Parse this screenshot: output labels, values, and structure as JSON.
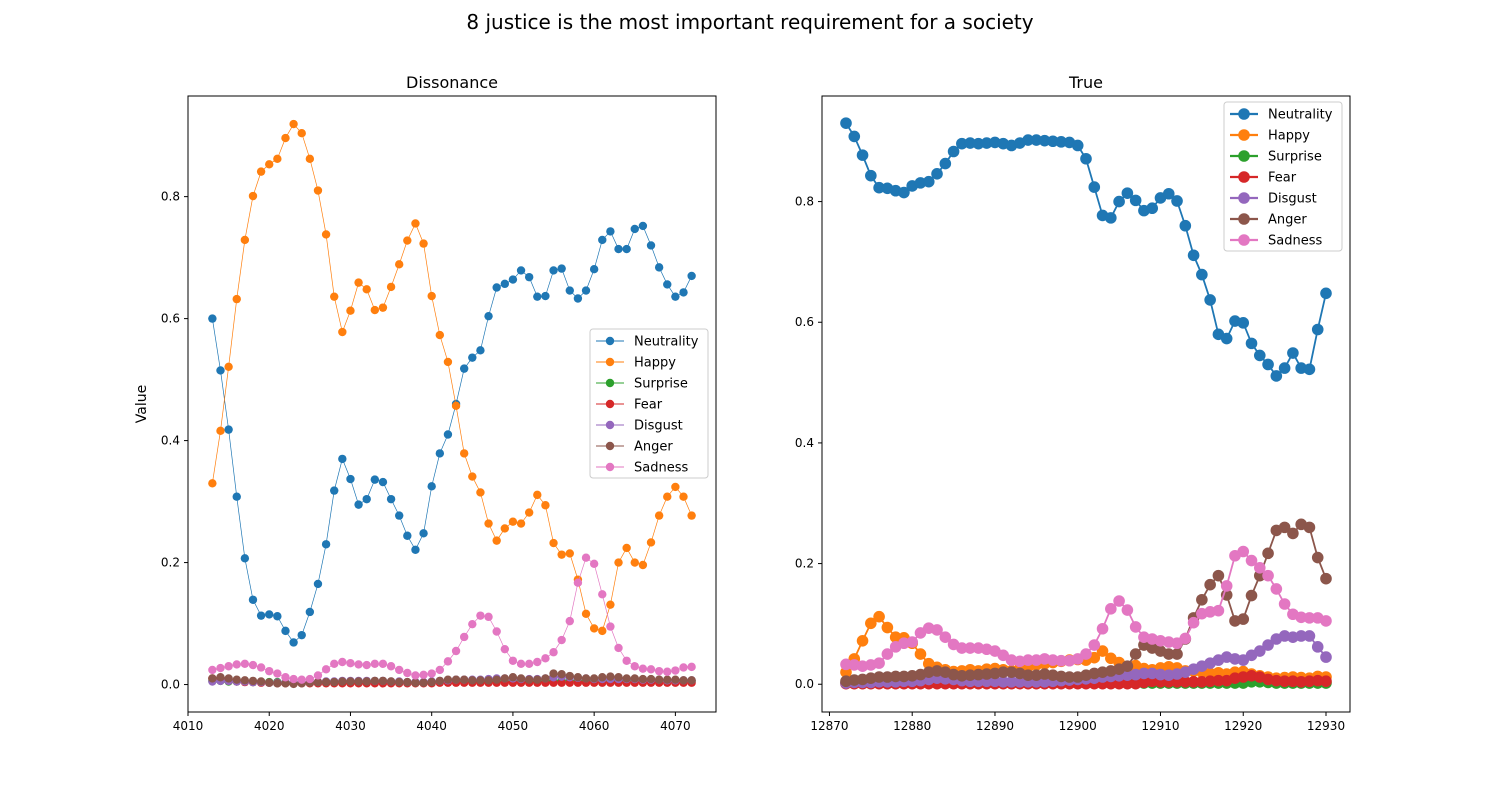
{
  "figure": {
    "suptitle": "8 justice is the most important requirement for a society"
  },
  "colors": {
    "Neutrality": "#1f77b4",
    "Happy": "#ff7f0e",
    "Surprise": "#2ca02c",
    "Fear": "#d62728",
    "Disgust": "#9467bd",
    "Anger": "#8c564b",
    "Sadness": "#e377c2"
  },
  "chart_data": [
    {
      "type": "line",
      "title": "Dissonance",
      "xlabel": "",
      "ylabel": "Value",
      "xlim": [
        4010,
        4075
      ],
      "ylim": [
        -0.045,
        0.965
      ],
      "xticks": [
        4010,
        4020,
        4030,
        4040,
        4050,
        4060,
        4070
      ],
      "yticks": [
        0.0,
        0.2,
        0.4,
        0.6,
        0.8
      ],
      "legend": "center-right",
      "x_start": 4013,
      "x_end": 4072,
      "series": [
        {
          "name": "Neutrality",
          "values": [
            0.6,
            0.515,
            0.418,
            0.308,
            0.207,
            0.139,
            0.113,
            0.115,
            0.112,
            0.088,
            0.069,
            0.081,
            0.119,
            0.165,
            0.23,
            0.318,
            0.37,
            0.337,
            0.295,
            0.304,
            0.336,
            0.332,
            0.304,
            0.277,
            0.244,
            0.221,
            0.248,
            0.325,
            0.379,
            0.41,
            0.46,
            0.518,
            0.536,
            0.548,
            0.604,
            0.651,
            0.657,
            0.664,
            0.679,
            0.668,
            0.636,
            0.637,
            0.679,
            0.682,
            0.646,
            0.633,
            0.646,
            0.681,
            0.729,
            0.743,
            0.714,
            0.714,
            0.747,
            0.752,
            0.72,
            0.684,
            0.656,
            0.636,
            0.643,
            0.67
          ]
        },
        {
          "name": "Happy",
          "values": [
            0.33,
            0.416,
            0.521,
            0.632,
            0.729,
            0.801,
            0.841,
            0.853,
            0.862,
            0.896,
            0.919,
            0.904,
            0.862,
            0.81,
            0.738,
            0.636,
            0.578,
            0.613,
            0.659,
            0.648,
            0.614,
            0.618,
            0.652,
            0.689,
            0.728,
            0.756,
            0.723,
            0.637,
            0.573,
            0.529,
            0.457,
            0.379,
            0.341,
            0.315,
            0.264,
            0.236,
            0.256,
            0.267,
            0.264,
            0.282,
            0.311,
            0.294,
            0.232,
            0.213,
            0.215,
            0.172,
            0.116,
            0.092,
            0.088,
            0.131,
            0.2,
            0.224,
            0.2,
            0.196,
            0.233,
            0.277,
            0.308,
            0.324,
            0.308,
            0.277
          ]
        },
        {
          "name": "Surprise",
          "values": [
            0.006,
            0.006,
            0.005,
            0.005,
            0.005,
            0.004,
            0.004,
            0.004,
            0.004,
            0.003,
            0.003,
            0.003,
            0.003,
            0.003,
            0.004,
            0.004,
            0.004,
            0.004,
            0.004,
            0.004,
            0.004,
            0.004,
            0.004,
            0.004,
            0.003,
            0.003,
            0.003,
            0.004,
            0.004,
            0.004,
            0.005,
            0.005,
            0.005,
            0.005,
            0.005,
            0.005,
            0.005,
            0.005,
            0.005,
            0.005,
            0.005,
            0.005,
            0.006,
            0.006,
            0.006,
            0.006,
            0.006,
            0.006,
            0.006,
            0.006,
            0.006,
            0.006,
            0.006,
            0.006,
            0.006,
            0.006,
            0.006,
            0.006,
            0.006,
            0.006
          ]
        },
        {
          "name": "Fear",
          "values": [
            0.01,
            0.008,
            0.006,
            0.005,
            0.004,
            0.004,
            0.003,
            0.003,
            0.002,
            0.002,
            0.002,
            0.002,
            0.002,
            0.002,
            0.002,
            0.002,
            0.002,
            0.002,
            0.002,
            0.002,
            0.002,
            0.002,
            0.002,
            0.002,
            0.002,
            0.002,
            0.002,
            0.002,
            0.003,
            0.003,
            0.003,
            0.003,
            0.003,
            0.003,
            0.003,
            0.003,
            0.003,
            0.003,
            0.003,
            0.003,
            0.003,
            0.003,
            0.003,
            0.003,
            0.003,
            0.003,
            0.003,
            0.003,
            0.003,
            0.003,
            0.003,
            0.003,
            0.003,
            0.003,
            0.003,
            0.003,
            0.003,
            0.003,
            0.003,
            0.003
          ]
        },
        {
          "name": "Disgust",
          "values": [
            0.005,
            0.006,
            0.006,
            0.005,
            0.005,
            0.004,
            0.004,
            0.003,
            0.003,
            0.003,
            0.003,
            0.003,
            0.004,
            0.004,
            0.005,
            0.005,
            0.006,
            0.006,
            0.006,
            0.006,
            0.006,
            0.006,
            0.005,
            0.005,
            0.004,
            0.004,
            0.004,
            0.005,
            0.006,
            0.007,
            0.008,
            0.008,
            0.008,
            0.008,
            0.009,
            0.01,
            0.01,
            0.01,
            0.009,
            0.009,
            0.009,
            0.01,
            0.012,
            0.013,
            0.012,
            0.011,
            0.01,
            0.009,
            0.009,
            0.009,
            0.009,
            0.009,
            0.009,
            0.008,
            0.008,
            0.008,
            0.007,
            0.007,
            0.007,
            0.007
          ]
        },
        {
          "name": "Anger",
          "values": [
            0.01,
            0.012,
            0.01,
            0.008,
            0.007,
            0.006,
            0.005,
            0.003,
            0.002,
            0.002,
            0.001,
            0.002,
            0.003,
            0.004,
            0.004,
            0.004,
            0.005,
            0.005,
            0.005,
            0.005,
            0.006,
            0.006,
            0.005,
            0.004,
            0.004,
            0.003,
            0.003,
            0.004,
            0.006,
            0.008,
            0.008,
            0.008,
            0.007,
            0.007,
            0.007,
            0.008,
            0.01,
            0.012,
            0.01,
            0.008,
            0.008,
            0.01,
            0.018,
            0.017,
            0.014,
            0.012,
            0.01,
            0.01,
            0.012,
            0.013,
            0.012,
            0.01,
            0.01,
            0.009,
            0.009,
            0.008,
            0.008,
            0.008,
            0.007,
            0.007
          ]
        },
        {
          "name": "Sadness",
          "values": [
            0.024,
            0.027,
            0.03,
            0.033,
            0.034,
            0.032,
            0.028,
            0.022,
            0.018,
            0.012,
            0.009,
            0.008,
            0.009,
            0.015,
            0.025,
            0.034,
            0.037,
            0.035,
            0.033,
            0.032,
            0.034,
            0.034,
            0.03,
            0.024,
            0.019,
            0.015,
            0.016,
            0.018,
            0.024,
            0.038,
            0.055,
            0.078,
            0.099,
            0.113,
            0.111,
            0.087,
            0.058,
            0.039,
            0.034,
            0.034,
            0.037,
            0.043,
            0.053,
            0.073,
            0.104,
            0.167,
            0.208,
            0.198,
            0.148,
            0.095,
            0.06,
            0.039,
            0.03,
            0.026,
            0.025,
            0.022,
            0.021,
            0.023,
            0.028,
            0.029
          ]
        }
      ]
    },
    {
      "type": "line",
      "title": "True",
      "xlabel": "",
      "ylabel": "",
      "xlim": [
        12869.1,
        12932.9
      ],
      "ylim": [
        -0.046,
        0.975
      ],
      "xticks": [
        12870,
        12880,
        12890,
        12900,
        12910,
        12920,
        12930
      ],
      "yticks": [
        0.0,
        0.2,
        0.4,
        0.6,
        0.8
      ],
      "legend": "top-right",
      "x_start": 12872,
      "x_end": 12930,
      "series": [
        {
          "name": "Neutrality",
          "values": [
            0.93,
            0.908,
            0.877,
            0.843,
            0.823,
            0.822,
            0.818,
            0.815,
            0.826,
            0.831,
            0.833,
            0.846,
            0.863,
            0.883,
            0.896,
            0.897,
            0.896,
            0.897,
            0.898,
            0.896,
            0.893,
            0.897,
            0.902,
            0.902,
            0.901,
            0.9,
            0.899,
            0.898,
            0.893,
            0.871,
            0.824,
            0.777,
            0.773,
            0.8,
            0.814,
            0.802,
            0.785,
            0.789,
            0.806,
            0.813,
            0.801,
            0.76,
            0.711,
            0.679,
            0.637,
            0.58,
            0.573,
            0.602,
            0.599,
            0.565,
            0.545,
            0.53,
            0.511,
            0.524,
            0.549,
            0.524,
            0.522,
            0.588,
            0.648
          ]
        },
        {
          "name": "Happy",
          "values": [
            0.02,
            0.042,
            0.072,
            0.101,
            0.112,
            0.094,
            0.078,
            0.077,
            0.068,
            0.05,
            0.034,
            0.028,
            0.024,
            0.021,
            0.022,
            0.024,
            0.022,
            0.025,
            0.026,
            0.024,
            0.022,
            0.026,
            0.029,
            0.032,
            0.034,
            0.036,
            0.038,
            0.04,
            0.041,
            0.04,
            0.044,
            0.055,
            0.043,
            0.036,
            0.029,
            0.031,
            0.026,
            0.024,
            0.027,
            0.029,
            0.027,
            0.022,
            0.022,
            0.02,
            0.018,
            0.019,
            0.017,
            0.02,
            0.021,
            0.017,
            0.014,
            0.012,
            0.01,
            0.011,
            0.012,
            0.011,
            0.01,
            0.013,
            0.012
          ]
        },
        {
          "name": "Surprise",
          "values": [
            0.002,
            0.002,
            0.002,
            0.002,
            0.002,
            0.002,
            0.002,
            0.002,
            0.002,
            0.002,
            0.002,
            0.002,
            0.002,
            0.002,
            0.002,
            0.002,
            0.002,
            0.002,
            0.002,
            0.002,
            0.002,
            0.002,
            0.002,
            0.002,
            0.002,
            0.002,
            0.002,
            0.002,
            0.002,
            0.002,
            0.002,
            0.002,
            0.002,
            0.002,
            0.002,
            0.002,
            0.002,
            0.002,
            0.002,
            0.002,
            0.002,
            0.002,
            0.002,
            0.002,
            0.002,
            0.002,
            0.002,
            0.002,
            0.002,
            0.004,
            0.004,
            0.003,
            0.002,
            0.002,
            0.002,
            0.002,
            0.002,
            0.002,
            0.002
          ]
        },
        {
          "name": "Fear",
          "values": [
            0.001,
            0.001,
            0.001,
            0.001,
            0.001,
            0.001,
            0.001,
            0.001,
            0.001,
            0.001,
            0.001,
            0.001,
            0.001,
            0.001,
            0.001,
            0.001,
            0.001,
            0.001,
            0.001,
            0.001,
            0.001,
            0.001,
            0.001,
            0.001,
            0.001,
            0.001,
            0.001,
            0.001,
            0.001,
            0.001,
            0.001,
            0.001,
            0.001,
            0.001,
            0.001,
            0.001,
            0.003,
            0.005,
            0.004,
            0.004,
            0.004,
            0.004,
            0.004,
            0.004,
            0.005,
            0.006,
            0.006,
            0.01,
            0.012,
            0.014,
            0.012,
            0.008,
            0.006,
            0.005,
            0.005,
            0.004,
            0.005,
            0.006,
            0.005
          ]
        },
        {
          "name": "Disgust",
          "values": [
            0.002,
            0.003,
            0.003,
            0.003,
            0.004,
            0.004,
            0.004,
            0.005,
            0.005,
            0.006,
            0.008,
            0.01,
            0.009,
            0.008,
            0.006,
            0.005,
            0.005,
            0.005,
            0.005,
            0.004,
            0.004,
            0.004,
            0.004,
            0.004,
            0.004,
            0.005,
            0.006,
            0.007,
            0.008,
            0.009,
            0.01,
            0.012,
            0.013,
            0.014,
            0.015,
            0.016,
            0.018,
            0.018,
            0.016,
            0.015,
            0.017,
            0.02,
            0.025,
            0.03,
            0.035,
            0.04,
            0.045,
            0.042,
            0.04,
            0.048,
            0.055,
            0.065,
            0.075,
            0.08,
            0.078,
            0.08,
            0.08,
            0.062,
            0.045
          ]
        },
        {
          "name": "Anger",
          "values": [
            0.005,
            0.007,
            0.008,
            0.01,
            0.012,
            0.012,
            0.013,
            0.013,
            0.014,
            0.016,
            0.02,
            0.022,
            0.02,
            0.016,
            0.014,
            0.015,
            0.016,
            0.017,
            0.018,
            0.02,
            0.02,
            0.018,
            0.015,
            0.015,
            0.017,
            0.015,
            0.013,
            0.012,
            0.012,
            0.015,
            0.018,
            0.02,
            0.022,
            0.025,
            0.03,
            0.05,
            0.065,
            0.06,
            0.055,
            0.05,
            0.05,
            0.075,
            0.11,
            0.14,
            0.165,
            0.18,
            0.148,
            0.105,
            0.108,
            0.147,
            0.18,
            0.217,
            0.255,
            0.26,
            0.25,
            0.265,
            0.26,
            0.21,
            0.175
          ]
        },
        {
          "name": "Sadness",
          "values": [
            0.033,
            0.032,
            0.03,
            0.032,
            0.035,
            0.05,
            0.062,
            0.068,
            0.07,
            0.085,
            0.093,
            0.09,
            0.078,
            0.066,
            0.06,
            0.06,
            0.06,
            0.058,
            0.055,
            0.048,
            0.04,
            0.038,
            0.04,
            0.04,
            0.042,
            0.04,
            0.039,
            0.039,
            0.042,
            0.05,
            0.065,
            0.092,
            0.125,
            0.138,
            0.123,
            0.095,
            0.078,
            0.075,
            0.072,
            0.07,
            0.068,
            0.076,
            0.102,
            0.117,
            0.12,
            0.122,
            0.163,
            0.213,
            0.22,
            0.205,
            0.193,
            0.18,
            0.158,
            0.133,
            0.116,
            0.111,
            0.11,
            0.11,
            0.105
          ]
        }
      ]
    }
  ]
}
